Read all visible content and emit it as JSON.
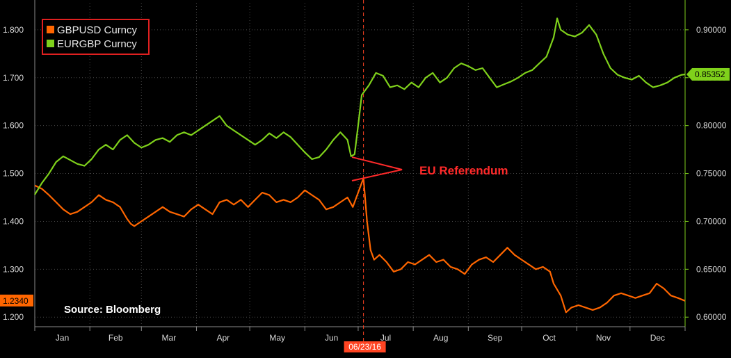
{
  "chart_data": {
    "type": "line",
    "background": "#000000",
    "grid": true,
    "legend_placement": "top-left",
    "x_labels": [
      "Jan",
      "Feb",
      "Mar",
      "Apr",
      "May",
      "Jun",
      "Jul",
      "Aug",
      "Sep",
      "Oct",
      "Nov",
      "Dec"
    ],
    "left_axis": {
      "ticks": [
        "1.200",
        "1.300",
        "1.400",
        "1.500",
        "1.600",
        "1.700",
        "1.800"
      ],
      "ylim": [
        1.18,
        1.855
      ]
    },
    "right_axis": {
      "ticks": [
        "0.60000",
        "0.65000",
        "0.70000",
        "0.75000",
        "0.80000",
        "0.85000",
        "0.90000"
      ],
      "ylim": [
        0.59,
        0.9275
      ]
    },
    "series": [
      {
        "name": "GBPUSD Curncy",
        "axis": "left",
        "color": "#ff6600",
        "last_value_label": "1.2340",
        "points": [
          [
            0,
            1.475
          ],
          [
            4,
            1.468
          ],
          [
            8,
            1.455
          ],
          [
            12,
            1.44
          ],
          [
            16,
            1.425
          ],
          [
            20,
            1.415
          ],
          [
            24,
            1.42
          ],
          [
            28,
            1.43
          ],
          [
            32,
            1.44
          ],
          [
            36,
            1.455
          ],
          [
            40,
            1.445
          ],
          [
            44,
            1.44
          ],
          [
            48,
            1.43
          ],
          [
            52,
            1.405
          ],
          [
            54,
            1.395
          ],
          [
            56,
            1.39
          ],
          [
            60,
            1.4
          ],
          [
            64,
            1.41
          ],
          [
            68,
            1.42
          ],
          [
            72,
            1.43
          ],
          [
            76,
            1.42
          ],
          [
            80,
            1.415
          ],
          [
            84,
            1.41
          ],
          [
            88,
            1.425
          ],
          [
            92,
            1.435
          ],
          [
            96,
            1.425
          ],
          [
            100,
            1.415
          ],
          [
            104,
            1.44
          ],
          [
            108,
            1.445
          ],
          [
            112,
            1.435
          ],
          [
            116,
            1.445
          ],
          [
            120,
            1.43
          ],
          [
            124,
            1.445
          ],
          [
            128,
            1.46
          ],
          [
            132,
            1.455
          ],
          [
            136,
            1.44
          ],
          [
            140,
            1.445
          ],
          [
            144,
            1.44
          ],
          [
            148,
            1.45
          ],
          [
            152,
            1.465
          ],
          [
            156,
            1.455
          ],
          [
            160,
            1.445
          ],
          [
            164,
            1.425
          ],
          [
            168,
            1.43
          ],
          [
            172,
            1.44
          ],
          [
            176,
            1.45
          ],
          [
            179,
            1.43
          ],
          [
            182,
            1.46
          ],
          [
            185,
            1.49
          ],
          [
            187,
            1.4
          ],
          [
            189,
            1.34
          ],
          [
            191,
            1.32
          ],
          [
            194,
            1.33
          ],
          [
            198,
            1.315
          ],
          [
            202,
            1.295
          ],
          [
            206,
            1.3
          ],
          [
            210,
            1.315
          ],
          [
            214,
            1.31
          ],
          [
            218,
            1.32
          ],
          [
            222,
            1.33
          ],
          [
            226,
            1.315
          ],
          [
            230,
            1.32
          ],
          [
            234,
            1.305
          ],
          [
            238,
            1.3
          ],
          [
            242,
            1.29
          ],
          [
            246,
            1.31
          ],
          [
            250,
            1.32
          ],
          [
            254,
            1.325
          ],
          [
            258,
            1.315
          ],
          [
            262,
            1.33
          ],
          [
            266,
            1.345
          ],
          [
            270,
            1.33
          ],
          [
            274,
            1.32
          ],
          [
            278,
            1.31
          ],
          [
            282,
            1.3
          ],
          [
            286,
            1.305
          ],
          [
            290,
            1.295
          ],
          [
            292,
            1.27
          ],
          [
            296,
            1.245
          ],
          [
            299,
            1.21
          ],
          [
            302,
            1.22
          ],
          [
            306,
            1.225
          ],
          [
            310,
            1.22
          ],
          [
            314,
            1.215
          ],
          [
            318,
            1.22
          ],
          [
            322,
            1.23
          ],
          [
            326,
            1.245
          ],
          [
            330,
            1.25
          ],
          [
            334,
            1.245
          ],
          [
            338,
            1.24
          ],
          [
            342,
            1.245
          ],
          [
            346,
            1.25
          ],
          [
            350,
            1.27
          ],
          [
            354,
            1.26
          ],
          [
            358,
            1.245
          ],
          [
            362,
            1.24
          ],
          [
            366,
            1.234
          ]
        ]
      },
      {
        "name": "EURGBP Curncy",
        "axis": "right",
        "color": "#7fd11b",
        "last_value_label": "0.85352",
        "points": [
          [
            0,
            0.728
          ],
          [
            4,
            0.74
          ],
          [
            8,
            0.75
          ],
          [
            12,
            0.762
          ],
          [
            16,
            0.768
          ],
          [
            20,
            0.764
          ],
          [
            24,
            0.76
          ],
          [
            28,
            0.758
          ],
          [
            32,
            0.765
          ],
          [
            36,
            0.775
          ],
          [
            40,
            0.78
          ],
          [
            44,
            0.775
          ],
          [
            48,
            0.785
          ],
          [
            52,
            0.79
          ],
          [
            56,
            0.782
          ],
          [
            60,
            0.777
          ],
          [
            64,
            0.78
          ],
          [
            68,
            0.785
          ],
          [
            72,
            0.787
          ],
          [
            76,
            0.783
          ],
          [
            80,
            0.79
          ],
          [
            84,
            0.793
          ],
          [
            88,
            0.79
          ],
          [
            92,
            0.795
          ],
          [
            96,
            0.8
          ],
          [
            100,
            0.805
          ],
          [
            104,
            0.81
          ],
          [
            108,
            0.8
          ],
          [
            112,
            0.795
          ],
          [
            116,
            0.79
          ],
          [
            120,
            0.785
          ],
          [
            124,
            0.78
          ],
          [
            128,
            0.785
          ],
          [
            132,
            0.792
          ],
          [
            136,
            0.787
          ],
          [
            140,
            0.793
          ],
          [
            144,
            0.788
          ],
          [
            148,
            0.78
          ],
          [
            152,
            0.772
          ],
          [
            156,
            0.765
          ],
          [
            160,
            0.767
          ],
          [
            164,
            0.775
          ],
          [
            168,
            0.785
          ],
          [
            172,
            0.793
          ],
          [
            176,
            0.785
          ],
          [
            178,
            0.768
          ],
          [
            180,
            0.77
          ],
          [
            182,
            0.8
          ],
          [
            184,
            0.832
          ],
          [
            188,
            0.842
          ],
          [
            192,
            0.855
          ],
          [
            196,
            0.852
          ],
          [
            200,
            0.84
          ],
          [
            204,
            0.842
          ],
          [
            208,
            0.838
          ],
          [
            212,
            0.845
          ],
          [
            216,
            0.84
          ],
          [
            220,
            0.85
          ],
          [
            224,
            0.855
          ],
          [
            228,
            0.845
          ],
          [
            232,
            0.85
          ],
          [
            236,
            0.86
          ],
          [
            240,
            0.865
          ],
          [
            244,
            0.862
          ],
          [
            248,
            0.858
          ],
          [
            252,
            0.86
          ],
          [
            256,
            0.85
          ],
          [
            260,
            0.84
          ],
          [
            264,
            0.843
          ],
          [
            268,
            0.846
          ],
          [
            272,
            0.85
          ],
          [
            276,
            0.855
          ],
          [
            280,
            0.858
          ],
          [
            284,
            0.865
          ],
          [
            288,
            0.872
          ],
          [
            292,
            0.892
          ],
          [
            294,
            0.912
          ],
          [
            296,
            0.9
          ],
          [
            300,
            0.895
          ],
          [
            304,
            0.893
          ],
          [
            308,
            0.897
          ],
          [
            312,
            0.905
          ],
          [
            316,
            0.895
          ],
          [
            320,
            0.875
          ],
          [
            324,
            0.86
          ],
          [
            328,
            0.853
          ],
          [
            332,
            0.85
          ],
          [
            336,
            0.848
          ],
          [
            340,
            0.852
          ],
          [
            344,
            0.845
          ],
          [
            348,
            0.84
          ],
          [
            352,
            0.842
          ],
          [
            356,
            0.845
          ],
          [
            360,
            0.85
          ],
          [
            364,
            0.853
          ],
          [
            366,
            0.8535
          ]
        ]
      }
    ],
    "event_marker": {
      "date_label": "06/23/16",
      "x": 185
    },
    "annotation": {
      "text": "EU Referendum"
    },
    "source": "Source: Bloomberg",
    "colors": {
      "grid": "#4a4a4a",
      "axis": "#8a8a8a",
      "annotation": "#ff2a2a",
      "legend_border": "#e02020",
      "event_badge": "#ff4422"
    }
  }
}
